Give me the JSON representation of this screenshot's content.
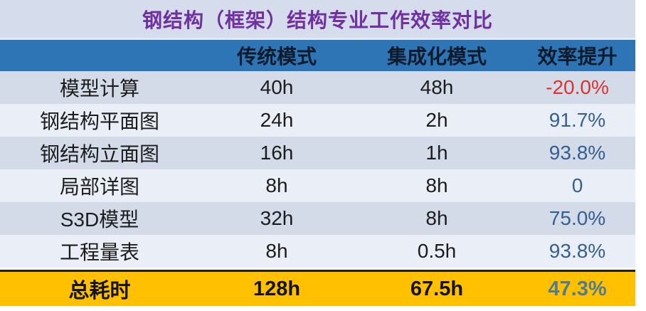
{
  "title": "钢结构（框架）结构专业工作效率对比",
  "colors": {
    "title_text": "#7030A0",
    "title_bg": "#D5DCEC",
    "header_bg": "#2E75B6",
    "row_odd_bg": "#D3DBE9",
    "row_even_bg": "#EAEEF6",
    "total_bg": "#FFC000",
    "efficiency_positive": "#365F91",
    "efficiency_negative": "#DC3232",
    "total_efficiency": "#527C8F"
  },
  "table": {
    "columns": [
      "",
      "传统模式",
      "集成化模式",
      "效率提升"
    ],
    "rows": [
      {
        "label": "模型计算",
        "traditional": "40h",
        "integrated": "48h",
        "efficiency": "-20.0%"
      },
      {
        "label": "钢结构平面图",
        "traditional": "24h",
        "integrated": "2h",
        "efficiency": "91.7%"
      },
      {
        "label": "钢结构立面图",
        "traditional": "16h",
        "integrated": "1h",
        "efficiency": "93.8%"
      },
      {
        "label": "局部详图",
        "traditional": "8h",
        "integrated": "8h",
        "efficiency": "0"
      },
      {
        "label": "S3D模型",
        "traditional": "32h",
        "integrated": "8h",
        "efficiency": "75.0%"
      },
      {
        "label": "工程量表",
        "traditional": "8h",
        "integrated": "0.5h",
        "efficiency": "93.8%"
      }
    ],
    "total": {
      "label": "总耗时",
      "traditional": "128h",
      "integrated": "67.5h",
      "efficiency": "47.3%"
    }
  },
  "chart_data": {
    "type": "table",
    "title": "钢结构（框架）结构专业工作效率对比",
    "columns": [
      "",
      "传统模式",
      "集成化模式",
      "效率提升"
    ],
    "rows": [
      [
        "模型计算",
        "40h",
        "48h",
        "-20.0%"
      ],
      [
        "钢结构平面图",
        "24h",
        "2h",
        "91.7%"
      ],
      [
        "钢结构立面图",
        "16h",
        "1h",
        "93.8%"
      ],
      [
        "局部详图",
        "8h",
        "8h",
        "0"
      ],
      [
        "S3D模型",
        "32h",
        "8h",
        "75.0%"
      ],
      [
        "工程量表",
        "8h",
        "0.5h",
        "93.8%"
      ]
    ],
    "total_row": [
      "总耗时",
      "128h",
      "67.5h",
      "47.3%"
    ],
    "series": [
      {
        "name": "传统模式(h)",
        "values": [
          40,
          24,
          16,
          8,
          32,
          8
        ]
      },
      {
        "name": "集成化模式(h)",
        "values": [
          48,
          2,
          1,
          8,
          8,
          0.5
        ]
      },
      {
        "name": "效率提升(%)",
        "values": [
          -20.0,
          91.7,
          93.8,
          0,
          75.0,
          93.8
        ]
      }
    ],
    "categories": [
      "模型计算",
      "钢结构平面图",
      "钢结构立面图",
      "局部详图",
      "S3D模型",
      "工程量表"
    ],
    "totals": {
      "传统模式": 128,
      "集成化模式": 67.5,
      "效率提升": 47.3
    }
  }
}
